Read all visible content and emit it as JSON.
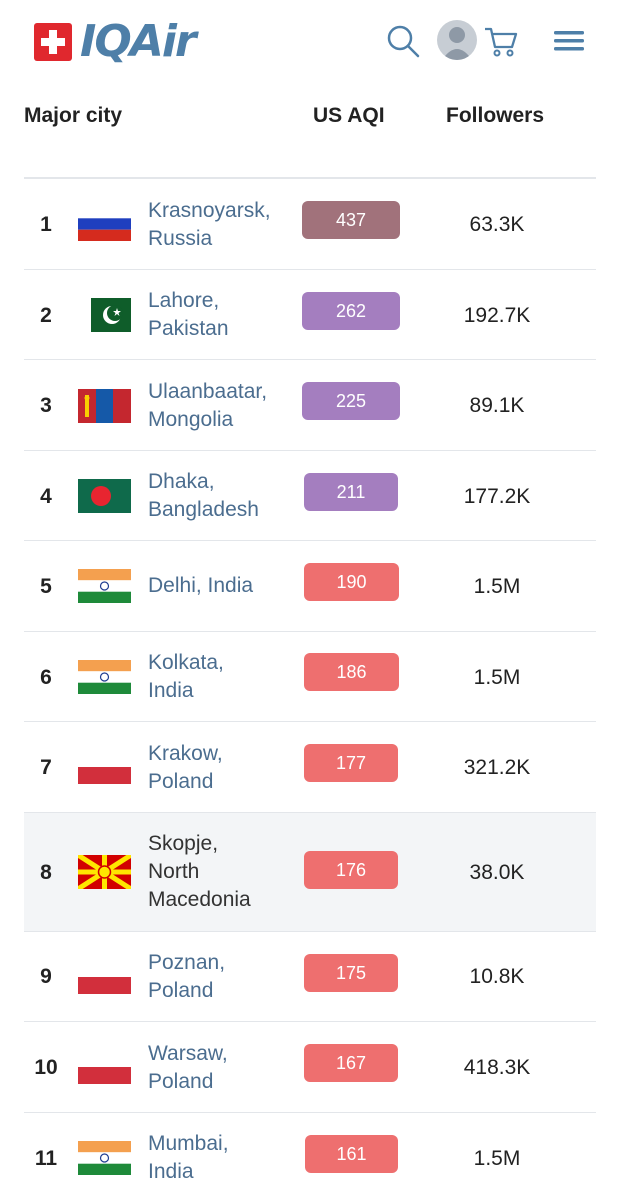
{
  "header": {
    "logo_text": "IQAir",
    "icons": [
      "swiss-flag-icon",
      "search-icon",
      "avatar",
      "cart-icon",
      "menu-icon"
    ]
  },
  "columns": {
    "city": "Major city",
    "aqi": "US AQI",
    "followers": "Followers"
  },
  "colors": {
    "hazardous": "#a1727b",
    "very_unhealthy": "#a47ebf",
    "unhealthy": "#ee6f6f",
    "link": "#4b6d8f"
  },
  "rows": [
    {
      "rank": "1",
      "city_line1": "Krasnoyarsk,",
      "city_line2": "Russia",
      "city_line3": "",
      "aqi": "437",
      "followers": "63.3K",
      "flag": "russia"
    },
    {
      "rank": "2",
      "city_line1": "Lahore,",
      "city_line2": "Pakistan",
      "city_line3": "",
      "aqi": "262",
      "followers": "192.7K",
      "flag": "pakistan"
    },
    {
      "rank": "3",
      "city_line1": "Ulaanbaatar,",
      "city_line2": "Mongolia",
      "city_line3": "",
      "aqi": "225",
      "followers": "89.1K",
      "flag": "mongolia"
    },
    {
      "rank": "4",
      "city_line1": "Dhaka,",
      "city_line2": "Bangladesh",
      "city_line3": "",
      "aqi": "211",
      "followers": "177.2K",
      "flag": "bangladesh"
    },
    {
      "rank": "5",
      "city_line1": "Delhi, India",
      "city_line2": "",
      "city_line3": "",
      "aqi": "190",
      "followers": "1.5M",
      "flag": "india"
    },
    {
      "rank": "6",
      "city_line1": "Kolkata,",
      "city_line2": "India",
      "city_line3": "",
      "aqi": "186",
      "followers": "1.5M",
      "flag": "india"
    },
    {
      "rank": "7",
      "city_line1": "Krakow,",
      "city_line2": "Poland",
      "city_line3": "",
      "aqi": "177",
      "followers": "321.2K",
      "flag": "poland"
    },
    {
      "rank": "8",
      "city_line1": "Skopje,",
      "city_line2": "North",
      "city_line3": "Macedonia",
      "aqi": "176",
      "followers": "38.0K",
      "flag": "north-macedonia"
    },
    {
      "rank": "9",
      "city_line1": "Poznan,",
      "city_line2": "Poland",
      "city_line3": "",
      "aqi": "175",
      "followers": "10.8K",
      "flag": "poland"
    },
    {
      "rank": "10",
      "city_line1": "Warsaw,",
      "city_line2": "Poland",
      "city_line3": "",
      "aqi": "167",
      "followers": "418.3K",
      "flag": "poland"
    },
    {
      "rank": "11",
      "city_line1": "Mumbai,",
      "city_line2": "India",
      "city_line3": "",
      "aqi": "161",
      "followers": "1.5M",
      "flag": "india"
    }
  ]
}
